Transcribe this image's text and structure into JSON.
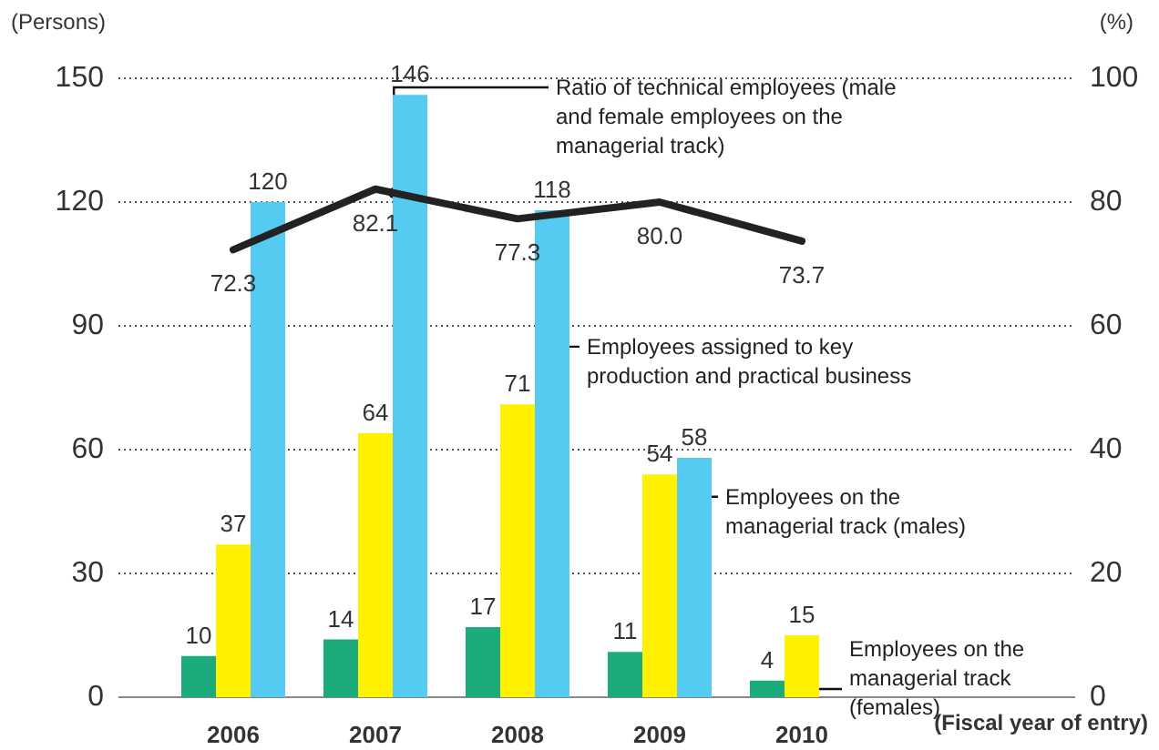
{
  "chart_data": {
    "type": "bar",
    "ylabel": "(Persons)",
    "y2label": "(%)",
    "xlabel": "(Fiscal year of entry)",
    "categories": [
      "2006",
      "2007",
      "2008",
      "2009",
      "2010"
    ],
    "series": [
      {
        "name": "Employees on the managerial track (females)",
        "color": "#1bab7c",
        "values": [
          10,
          14,
          17,
          11,
          4
        ]
      },
      {
        "name": "Employees on the managerial track (males)",
        "color": "#fff100",
        "values": [
          37,
          64,
          71,
          54,
          15
        ]
      },
      {
        "name": "Employees assigned to key production and practical business",
        "color": "#56cbf2",
        "values": [
          120,
          146,
          118,
          58,
          null
        ]
      },
      {
        "name": "Ratio of technical employees (male and female employees on the managerial track)",
        "type": "line",
        "axis": "y2",
        "color": "#222222",
        "values": [
          72.3,
          82.1,
          77.3,
          80.0,
          73.7
        ],
        "value_labels": [
          "72.3",
          "82.1",
          "77.3",
          "80.0",
          "73.7"
        ]
      }
    ],
    "ylim": [
      0,
      150
    ],
    "yticks": [
      0,
      30,
      60,
      90,
      120,
      150
    ],
    "y2lim": [
      0,
      100
    ],
    "y2ticks": [
      0,
      20,
      40,
      60,
      80,
      100
    ],
    "data_labels": true,
    "grid": "y",
    "legend": false,
    "marker": "none",
    "line_style": "solid"
  }
}
